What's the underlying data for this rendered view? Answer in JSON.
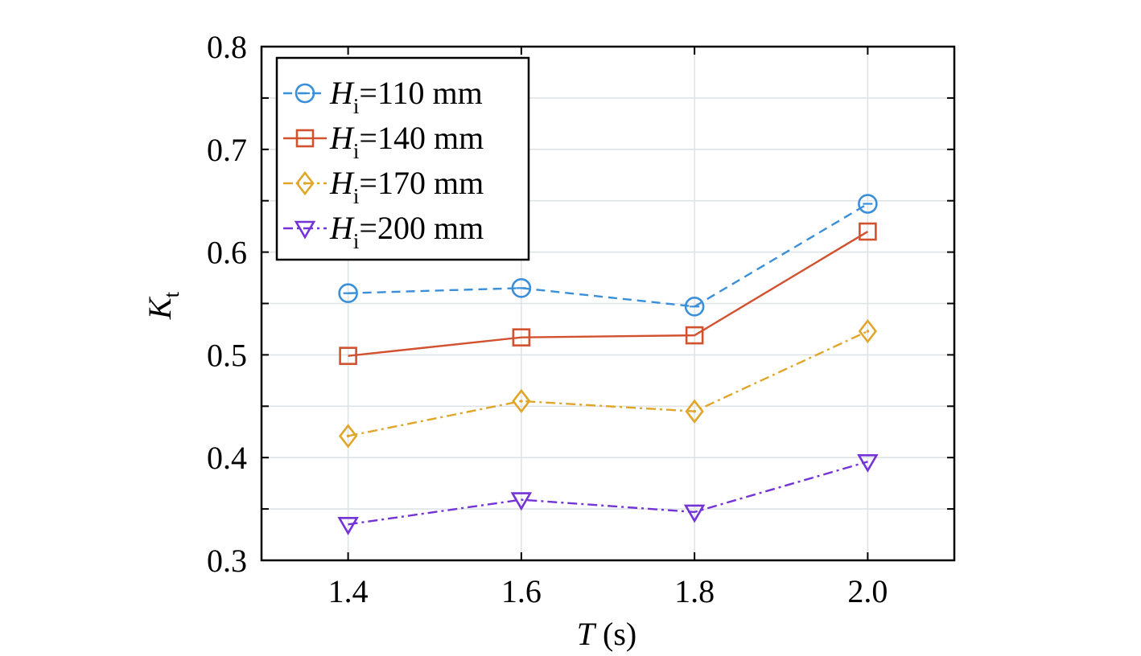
{
  "chart_data": {
    "type": "line",
    "x": [
      1.4,
      1.6,
      1.8,
      2.0
    ],
    "xlim": [
      1.3,
      2.1
    ],
    "ylim": [
      0.3,
      0.8
    ],
    "xticks": [
      1.4,
      1.6,
      1.8,
      2.0
    ],
    "xtick_labels": [
      "1.4",
      "1.6",
      "1.8",
      "2.0"
    ],
    "yticks": [
      0.3,
      0.4,
      0.5,
      0.6,
      0.7,
      0.8
    ],
    "ytick_labels": [
      "0.3",
      "0.4",
      "0.5",
      "0.6",
      "0.7",
      "0.8"
    ],
    "xlabel": {
      "var": "T",
      "unit": " (s)"
    },
    "ylabel": {
      "var": "K",
      "sub": "t"
    },
    "grid": true,
    "legend_position": "top-left",
    "series": [
      {
        "name_var": "H",
        "name_sub": "i",
        "name_rest": "=110 mm",
        "values": [
          0.56,
          0.565,
          0.547,
          0.647
        ],
        "color": "#3a8fd9",
        "marker": "circle",
        "dash": "dashed"
      },
      {
        "name_var": "H",
        "name_sub": "i",
        "name_rest": "=140 mm",
        "values": [
          0.499,
          0.517,
          0.519,
          0.62
        ],
        "color": "#d2512f",
        "marker": "square",
        "dash": "solid"
      },
      {
        "name_var": "H",
        "name_sub": "i",
        "name_rest": "=170 mm",
        "values": [
          0.421,
          0.455,
          0.445,
          0.523
        ],
        "color": "#e0a62a",
        "marker": "diamond",
        "dash": "dashdot"
      },
      {
        "name_var": "H",
        "name_sub": "i",
        "name_rest": "=200 mm",
        "values": [
          0.335,
          0.359,
          0.347,
          0.396
        ],
        "color": "#7433d6",
        "marker": "triangle-down",
        "dash": "dashdot"
      }
    ]
  }
}
